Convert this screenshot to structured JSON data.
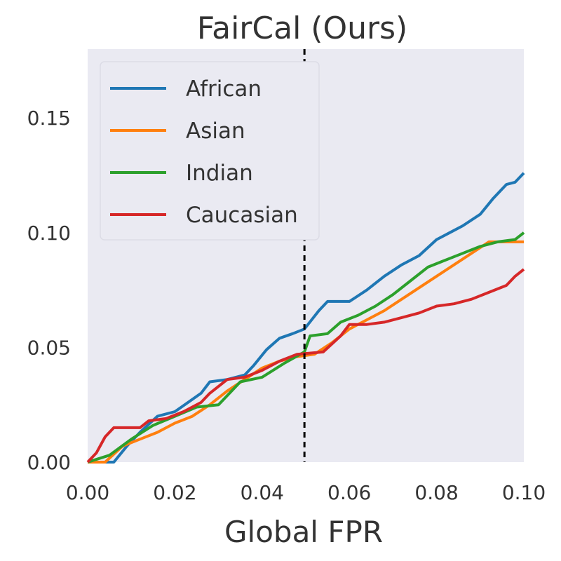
{
  "chart_data": {
    "type": "line",
    "title": "FairCal (Ours)",
    "xlabel": "Global FPR",
    "ylabel": "",
    "xlim": [
      0.0,
      0.1
    ],
    "ylim": [
      0.0,
      0.18
    ],
    "xticks": [
      0.0,
      0.02,
      0.04,
      0.06,
      0.08,
      0.1
    ],
    "xtick_labels": [
      "0.00",
      "0.02",
      "0.04",
      "0.06",
      "0.08",
      "0.10"
    ],
    "yticks": [
      0.0,
      0.05,
      0.1,
      0.15
    ],
    "ytick_labels": [
      "0.00",
      "0.05",
      "0.10",
      "0.15"
    ],
    "grid": false,
    "legend_position": "top-left",
    "vline": {
      "x": 0.0497,
      "style": "dashed",
      "color": "#000000"
    },
    "series": [
      {
        "name": "African",
        "color": "#1f77b4",
        "points": [
          [
            0.0,
            0.0
          ],
          [
            0.006,
            0.0
          ],
          [
            0.009,
            0.007
          ],
          [
            0.012,
            0.013
          ],
          [
            0.016,
            0.02
          ],
          [
            0.02,
            0.022
          ],
          [
            0.023,
            0.026
          ],
          [
            0.026,
            0.03
          ],
          [
            0.028,
            0.035
          ],
          [
            0.032,
            0.036
          ],
          [
            0.036,
            0.038
          ],
          [
            0.038,
            0.042
          ],
          [
            0.041,
            0.049
          ],
          [
            0.044,
            0.054
          ],
          [
            0.047,
            0.056
          ],
          [
            0.0497,
            0.058
          ],
          [
            0.053,
            0.066
          ],
          [
            0.055,
            0.07
          ],
          [
            0.06,
            0.07
          ],
          [
            0.064,
            0.075
          ],
          [
            0.068,
            0.081
          ],
          [
            0.072,
            0.086
          ],
          [
            0.076,
            0.09
          ],
          [
            0.08,
            0.097
          ],
          [
            0.083,
            0.1
          ],
          [
            0.086,
            0.103
          ],
          [
            0.09,
            0.108
          ],
          [
            0.093,
            0.115
          ],
          [
            0.096,
            0.121
          ],
          [
            0.098,
            0.122
          ],
          [
            0.1,
            0.126
          ]
        ]
      },
      {
        "name": "Asian",
        "color": "#ff7f0e",
        "points": [
          [
            0.0,
            0.0
          ],
          [
            0.004,
            0.0
          ],
          [
            0.008,
            0.007
          ],
          [
            0.012,
            0.01
          ],
          [
            0.016,
            0.013
          ],
          [
            0.02,
            0.017
          ],
          [
            0.024,
            0.02
          ],
          [
            0.028,
            0.025
          ],
          [
            0.032,
            0.031
          ],
          [
            0.036,
            0.036
          ],
          [
            0.04,
            0.041
          ],
          [
            0.044,
            0.044
          ],
          [
            0.048,
            0.046
          ],
          [
            0.052,
            0.047
          ],
          [
            0.056,
            0.052
          ],
          [
            0.06,
            0.058
          ],
          [
            0.064,
            0.062
          ],
          [
            0.068,
            0.066
          ],
          [
            0.072,
            0.071
          ],
          [
            0.076,
            0.076
          ],
          [
            0.08,
            0.081
          ],
          [
            0.084,
            0.086
          ],
          [
            0.088,
            0.091
          ],
          [
            0.092,
            0.096
          ],
          [
            0.096,
            0.096
          ],
          [
            0.1,
            0.096
          ]
        ]
      },
      {
        "name": "Indian",
        "color": "#2ca02c",
        "points": [
          [
            0.0,
            0.0
          ],
          [
            0.005,
            0.003
          ],
          [
            0.01,
            0.01
          ],
          [
            0.015,
            0.016
          ],
          [
            0.02,
            0.02
          ],
          [
            0.025,
            0.024
          ],
          [
            0.03,
            0.025
          ],
          [
            0.035,
            0.035
          ],
          [
            0.04,
            0.037
          ],
          [
            0.045,
            0.043
          ],
          [
            0.0497,
            0.048
          ],
          [
            0.051,
            0.055
          ],
          [
            0.055,
            0.056
          ],
          [
            0.058,
            0.061
          ],
          [
            0.062,
            0.064
          ],
          [
            0.066,
            0.068
          ],
          [
            0.07,
            0.073
          ],
          [
            0.074,
            0.079
          ],
          [
            0.078,
            0.085
          ],
          [
            0.082,
            0.088
          ],
          [
            0.086,
            0.091
          ],
          [
            0.09,
            0.094
          ],
          [
            0.094,
            0.096
          ],
          [
            0.098,
            0.097
          ],
          [
            0.1,
            0.1
          ]
        ]
      },
      {
        "name": "Caucasian",
        "color": "#d62728",
        "points": [
          [
            0.0,
            0.0
          ],
          [
            0.002,
            0.004
          ],
          [
            0.004,
            0.011
          ],
          [
            0.006,
            0.015
          ],
          [
            0.012,
            0.015
          ],
          [
            0.014,
            0.018
          ],
          [
            0.018,
            0.019
          ],
          [
            0.022,
            0.022
          ],
          [
            0.026,
            0.026
          ],
          [
            0.028,
            0.03
          ],
          [
            0.032,
            0.036
          ],
          [
            0.036,
            0.037
          ],
          [
            0.04,
            0.04
          ],
          [
            0.044,
            0.044
          ],
          [
            0.048,
            0.047
          ],
          [
            0.054,
            0.048
          ],
          [
            0.058,
            0.055
          ],
          [
            0.06,
            0.06
          ],
          [
            0.064,
            0.06
          ],
          [
            0.068,
            0.061
          ],
          [
            0.072,
            0.063
          ],
          [
            0.076,
            0.065
          ],
          [
            0.08,
            0.068
          ],
          [
            0.084,
            0.069
          ],
          [
            0.088,
            0.071
          ],
          [
            0.092,
            0.074
          ],
          [
            0.096,
            0.077
          ],
          [
            0.098,
            0.081
          ],
          [
            0.1,
            0.084
          ]
        ]
      }
    ]
  }
}
